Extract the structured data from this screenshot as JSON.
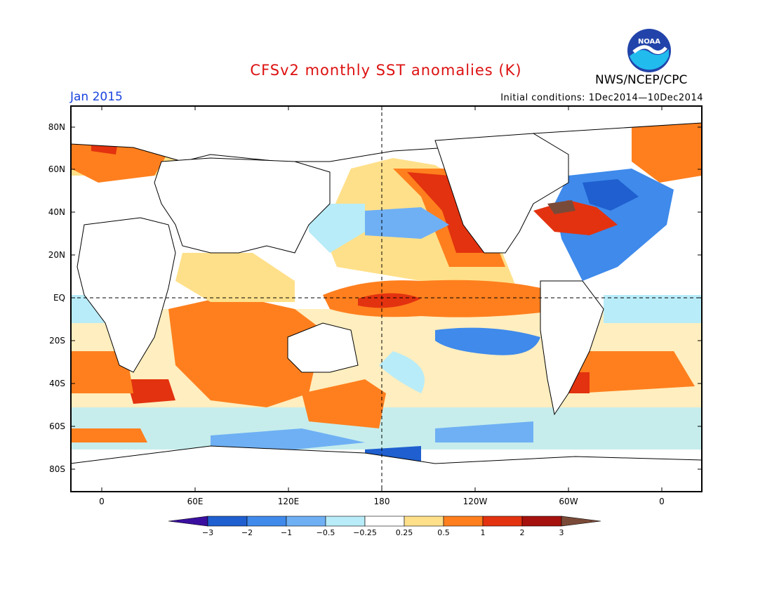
{
  "header": {
    "title": "CFSv2 monthly SST anomalies (K)",
    "month": "Jan 2015",
    "initial_conditions": "Initial conditions: 1Dec2014—10Dec2014",
    "agency": "NWS/NCEP/CPC",
    "logo_text": "NOAA",
    "logo_icon": "noaa-logo-icon"
  },
  "map": {
    "lat_labels": [
      "80N",
      "60N",
      "40N",
      "20N",
      "EQ",
      "20S",
      "40S",
      "60S",
      "80S"
    ],
    "lon_labels": [
      "0",
      "60E",
      "120E",
      "180",
      "120W",
      "60W",
      "0"
    ],
    "reference_lines": [
      "equator",
      "dateline"
    ]
  },
  "colorbar": {
    "labels": [
      "−3",
      "−2",
      "−1",
      "−0.5",
      "−0.25",
      "0.25",
      "0.5",
      "1",
      "2",
      "3"
    ],
    "colors": [
      "#3a0f9f",
      "#1f5fcf",
      "#3f8aeb",
      "#6fb0f4",
      "#b8ecf8",
      "#ffffff",
      "#ffe08a",
      "#ff7f1e",
      "#e3320f",
      "#a6120d",
      "#7a4a38"
    ]
  }
}
